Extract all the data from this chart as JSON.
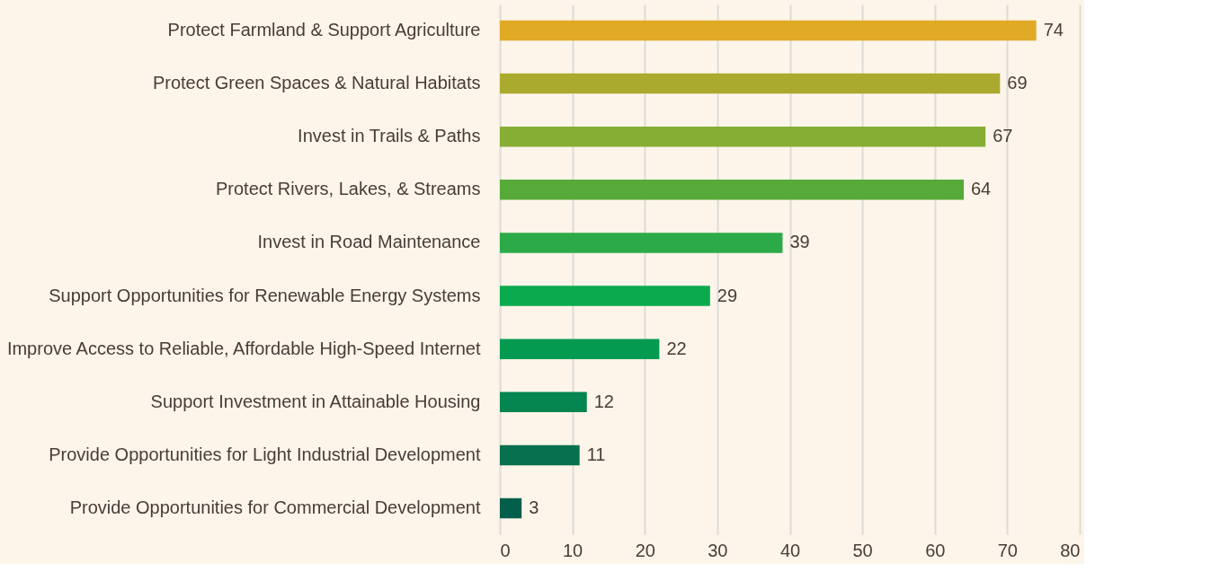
{
  "chart_data": {
    "type": "bar",
    "orientation": "horizontal",
    "categories": [
      "Protect Farmland & Support Agriculture",
      "Protect Green Spaces & Natural Habitats",
      "Invest in Trails & Paths",
      "Protect Rivers, Lakes, & Streams",
      "Invest in Road Maintenance",
      "Support Opportunities for Renewable Energy Systems",
      "Improve Access to Reliable, Affordable High-Speed Internet",
      "Support Investment in Attainable Housing",
      "Provide Opportunities for Light Industrial Development",
      "Provide Opportunities for Commercial Development"
    ],
    "values": [
      74,
      69,
      67,
      64,
      39,
      29,
      22,
      12,
      11,
      3
    ],
    "colors": [
      "#e0aa27",
      "#aaaa2e",
      "#86ad34",
      "#56aa3a",
      "#2daa48",
      "#0aaa4e",
      "#049a50",
      "#058550",
      "#06704f",
      "#035e4b"
    ],
    "xlim": [
      0,
      80
    ],
    "xticks": [
      0,
      10,
      20,
      30,
      40,
      50,
      60,
      70,
      80
    ],
    "grid": "x",
    "data_labels": true,
    "legend": false
  }
}
